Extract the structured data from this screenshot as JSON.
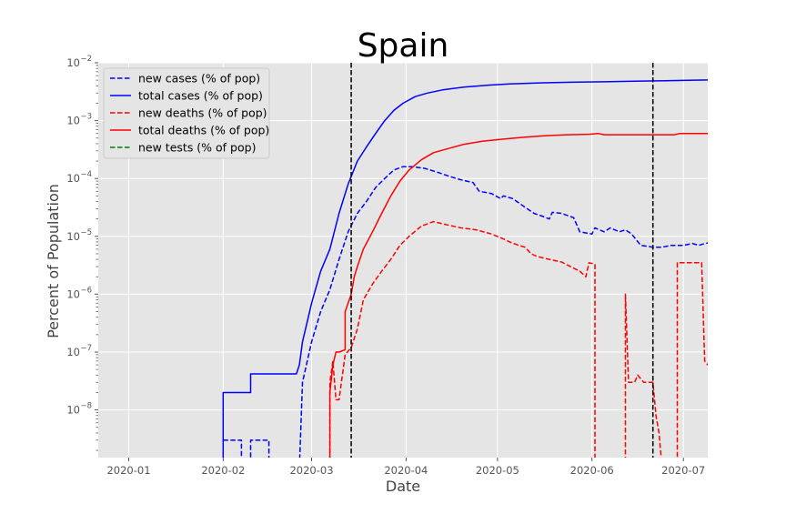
{
  "chart_data": {
    "type": "line",
    "title": "Spain",
    "xlabel": "Date",
    "ylabel": "Percent of Population",
    "yscale": "log",
    "ylim": [
      1.5e-09,
      0.01
    ],
    "xlim": [
      "2019-12-22",
      "2020-07-09"
    ],
    "x_ticks": [
      "2020-01",
      "2020-02",
      "2020-03",
      "2020-04",
      "2020-05",
      "2020-06",
      "2020-07"
    ],
    "x_tick_dates": [
      "2020-01-01",
      "2020-02-01",
      "2020-03-01",
      "2020-04-01",
      "2020-05-01",
      "2020-06-01",
      "2020-07-01"
    ],
    "y_ticks": [
      {
        "value": 1e-08,
        "label": "10",
        "exp": "−8"
      },
      {
        "value": 1e-07,
        "label": "10",
        "exp": "−7"
      },
      {
        "value": 1e-06,
        "label": "10",
        "exp": "−6"
      },
      {
        "value": 1e-05,
        "label": "10",
        "exp": "−5"
      },
      {
        "value": 0.0001,
        "label": "10",
        "exp": "−4"
      },
      {
        "value": 0.001,
        "label": "10",
        "exp": "−3"
      },
      {
        "value": 0.01,
        "label": "10",
        "exp": "−2"
      }
    ],
    "grid": true,
    "legend_position": "top-left",
    "vlines": [
      "2020-03-14",
      "2020-06-21"
    ],
    "series": [
      {
        "name": "new cases (% of pop)",
        "color": "#0000ff",
        "dash": true,
        "points": [
          [
            "2020-02-01",
            3e-09
          ],
          [
            "2020-02-07",
            3e-09
          ],
          [
            "2020-02-07",
            1e-09
          ],
          [
            "2020-02-10",
            1e-09
          ],
          [
            "2020-02-10",
            3e-09
          ],
          [
            "2020-02-16",
            3e-09
          ],
          [
            "2020-02-16",
            1e-09
          ],
          [
            "2020-02-26",
            1e-09
          ],
          [
            "2020-02-27",
            3e-08
          ],
          [
            "2020-03-01",
            1.5e-07
          ],
          [
            "2020-03-04",
            5e-07
          ],
          [
            "2020-03-07",
            1.2e-06
          ],
          [
            "2020-03-10",
            4e-06
          ],
          [
            "2020-03-13",
            1.2e-05
          ],
          [
            "2020-03-16",
            2.5e-05
          ],
          [
            "2020-03-19",
            4e-05
          ],
          [
            "2020-03-22",
            7e-05
          ],
          [
            "2020-03-25",
            0.0001
          ],
          [
            "2020-03-28",
            0.00014
          ],
          [
            "2020-03-31",
            0.00016
          ],
          [
            "2020-04-03",
            0.00016
          ],
          [
            "2020-04-07",
            0.00015
          ],
          [
            "2020-04-11",
            0.00013
          ],
          [
            "2020-04-15",
            0.00011
          ],
          [
            "2020-04-19",
            9.5e-05
          ],
          [
            "2020-04-23",
            8.5e-05
          ],
          [
            "2020-04-25",
            6e-05
          ],
          [
            "2020-04-29",
            5.5e-05
          ],
          [
            "2020-05-02",
            4.5e-05
          ],
          [
            "2020-05-03",
            5e-05
          ],
          [
            "2020-05-06",
            4.5e-05
          ],
          [
            "2020-05-10",
            3.2e-05
          ],
          [
            "2020-05-13",
            2.5e-05
          ],
          [
            "2020-05-16",
            2.2e-05
          ],
          [
            "2020-05-18",
            2e-05
          ],
          [
            "2020-05-19",
            2.6e-05
          ],
          [
            "2020-05-22",
            2.5e-05
          ],
          [
            "2020-05-26",
            2.1e-05
          ],
          [
            "2020-05-28",
            1.2e-05
          ],
          [
            "2020-06-01",
            1.1e-05
          ],
          [
            "2020-06-02",
            1.4e-05
          ],
          [
            "2020-06-05",
            1.2e-05
          ],
          [
            "2020-06-07",
            1.4e-05
          ],
          [
            "2020-06-10",
            1.2e-05
          ],
          [
            "2020-06-12",
            1.3e-05
          ],
          [
            "2020-06-14",
            1.1e-05
          ],
          [
            "2020-06-17",
            7e-06
          ],
          [
            "2020-06-21",
            6.5e-06
          ],
          [
            "2020-06-24",
            6.5e-06
          ],
          [
            "2020-06-27",
            7e-06
          ],
          [
            "2020-07-01",
            7e-06
          ],
          [
            "2020-07-04",
            7.5e-06
          ],
          [
            "2020-07-06",
            7e-06
          ],
          [
            "2020-07-08",
            7.5e-06
          ],
          [
            "2020-07-11",
            8e-06
          ],
          [
            "2020-07-14",
            8e-06
          ]
        ]
      },
      {
        "name": "total cases (% of pop)",
        "color": "#0000ff",
        "dash": false,
        "points": [
          [
            "2020-02-01",
            1e-09
          ],
          [
            "2020-02-01",
            2e-08
          ],
          [
            "2020-02-10",
            2e-08
          ],
          [
            "2020-02-10",
            4.2e-08
          ],
          [
            "2020-02-25",
            4.2e-08
          ],
          [
            "2020-02-26",
            6e-08
          ],
          [
            "2020-02-27",
            1.5e-07
          ],
          [
            "2020-03-01",
            7e-07
          ],
          [
            "2020-03-04",
            2.5e-06
          ],
          [
            "2020-03-07",
            6e-06
          ],
          [
            "2020-03-10",
            2.5e-05
          ],
          [
            "2020-03-13",
            8e-05
          ],
          [
            "2020-03-16",
            0.0002
          ],
          [
            "2020-03-19",
            0.00035
          ],
          [
            "2020-03-22",
            0.0006
          ],
          [
            "2020-03-25",
            0.001
          ],
          [
            "2020-03-28",
            0.0015
          ],
          [
            "2020-03-31",
            0.002
          ],
          [
            "2020-04-04",
            0.0026
          ],
          [
            "2020-04-08",
            0.003
          ],
          [
            "2020-04-13",
            0.0034
          ],
          [
            "2020-04-20",
            0.0038
          ],
          [
            "2020-04-28",
            0.0041
          ],
          [
            "2020-05-05",
            0.0043
          ],
          [
            "2020-05-15",
            0.0045
          ],
          [
            "2020-05-25",
            0.0046
          ],
          [
            "2020-06-05",
            0.0047
          ],
          [
            "2020-06-15",
            0.0048
          ],
          [
            "2020-06-25",
            0.0049
          ],
          [
            "2020-07-05",
            0.005
          ],
          [
            "2020-07-14",
            0.0051
          ]
        ]
      },
      {
        "name": "new deaths (% of pop)",
        "color": "#ff0000",
        "dash": true,
        "points": [
          [
            "2020-03-07",
            1e-09
          ],
          [
            "2020-03-07",
            3e-08
          ],
          [
            "2020-03-08",
            7e-08
          ],
          [
            "2020-03-09",
            1.5e-08
          ],
          [
            "2020-03-10",
            1.5e-08
          ],
          [
            "2020-03-12",
            9e-08
          ],
          [
            "2020-03-14",
            1.2e-07
          ],
          [
            "2020-03-16",
            2.5e-07
          ],
          [
            "2020-03-18",
            8e-07
          ],
          [
            "2020-03-21",
            1.5e-06
          ],
          [
            "2020-03-24",
            2.5e-06
          ],
          [
            "2020-03-27",
            4e-06
          ],
          [
            "2020-03-30",
            7e-06
          ],
          [
            "2020-04-02",
            1e-05
          ],
          [
            "2020-04-06",
            1.5e-05
          ],
          [
            "2020-04-10",
            1.8e-05
          ],
          [
            "2020-04-14",
            1.6e-05
          ],
          [
            "2020-04-19",
            1.4e-05
          ],
          [
            "2020-04-24",
            1.3e-05
          ],
          [
            "2020-04-29",
            1.1e-05
          ],
          [
            "2020-05-03",
            9e-06
          ],
          [
            "2020-05-05",
            8e-06
          ],
          [
            "2020-05-08",
            7e-06
          ],
          [
            "2020-05-10",
            6.5e-06
          ],
          [
            "2020-05-12",
            5e-06
          ],
          [
            "2020-05-14",
            4.5e-06
          ],
          [
            "2020-05-18",
            4e-06
          ],
          [
            "2020-05-22",
            3.6e-06
          ],
          [
            "2020-05-25",
            3e-06
          ],
          [
            "2020-05-28",
            2.5e-06
          ],
          [
            "2020-05-30",
            2e-06
          ],
          [
            "2020-05-31",
            3.5e-06
          ],
          [
            "2020-06-02",
            3.3e-06
          ],
          [
            "2020-06-02",
            1e-09
          ],
          [
            "2020-06-12",
            1e-09
          ],
          [
            "2020-06-12",
            1e-06
          ],
          [
            "2020-06-13",
            3e-08
          ],
          [
            "2020-06-15",
            3e-08
          ],
          [
            "2020-06-16",
            4e-08
          ],
          [
            "2020-06-18",
            3e-08
          ],
          [
            "2020-06-21",
            3e-08
          ],
          [
            "2020-06-22",
            8e-09
          ],
          [
            "2020-06-23",
            4e-09
          ],
          [
            "2020-06-24",
            1e-09
          ],
          [
            "2020-06-29",
            1e-09
          ],
          [
            "2020-06-29",
            3.5e-06
          ],
          [
            "2020-07-05",
            3.5e-06
          ],
          [
            "2020-07-07",
            3.5e-06
          ],
          [
            "2020-07-08",
            7e-08
          ],
          [
            "2020-07-09",
            6e-08
          ],
          [
            "2020-07-11",
            7e-08
          ],
          [
            "2020-07-13",
            1e-07
          ],
          [
            "2020-07-14",
            1.1e-07
          ]
        ]
      },
      {
        "name": "total deaths (% of pop)",
        "color": "#ff0000",
        "dash": false,
        "points": [
          [
            "2020-03-07",
            1e-09
          ],
          [
            "2020-03-07",
            2e-08
          ],
          [
            "2020-03-08",
            6e-08
          ],
          [
            "2020-03-09",
            1e-07
          ],
          [
            "2020-03-10",
            1e-07
          ],
          [
            "2020-03-12",
            1.1e-07
          ],
          [
            "2020-03-12",
            5e-07
          ],
          [
            "2020-03-14",
            1e-06
          ],
          [
            "2020-03-15",
            2e-06
          ],
          [
            "2020-03-16",
            3e-06
          ],
          [
            "2020-03-18",
            6e-06
          ],
          [
            "2020-03-21",
            1.2e-05
          ],
          [
            "2020-03-24",
            2.5e-05
          ],
          [
            "2020-03-27",
            5e-05
          ],
          [
            "2020-03-30",
            9e-05
          ],
          [
            "2020-04-02",
            0.00014
          ],
          [
            "2020-04-06",
            0.00021
          ],
          [
            "2020-04-10",
            0.00028
          ],
          [
            "2020-04-15",
            0.00033
          ],
          [
            "2020-04-20",
            0.00039
          ],
          [
            "2020-04-26",
            0.00044
          ],
          [
            "2020-05-03",
            0.00048
          ],
          [
            "2020-05-10",
            0.00052
          ],
          [
            "2020-05-17",
            0.00055
          ],
          [
            "2020-05-24",
            0.00057
          ],
          [
            "2020-05-31",
            0.00058
          ],
          [
            "2020-06-03",
            0.0006
          ],
          [
            "2020-06-05",
            0.00057
          ],
          [
            "2020-06-15",
            0.00057
          ],
          [
            "2020-06-28",
            0.00057
          ],
          [
            "2020-06-30",
            0.0006
          ],
          [
            "2020-07-14",
            0.0006
          ]
        ]
      },
      {
        "name": "new tests (% of pop)",
        "color": "#008000",
        "dash": true,
        "points": []
      }
    ]
  }
}
